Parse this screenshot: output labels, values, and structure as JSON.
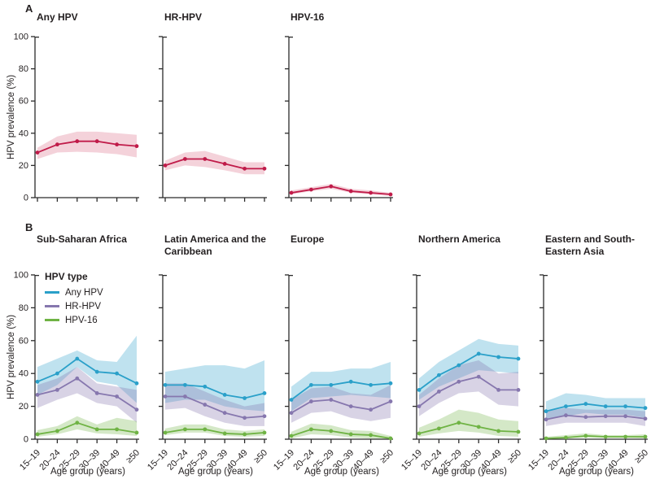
{
  "figure": {
    "panels": [
      {
        "label": "A"
      },
      {
        "label": "B"
      }
    ],
    "ylabel": "HPV prevalence (%)",
    "xlabel": "Age group (years)",
    "legend": {
      "title": "HPV type",
      "position": "top-left of first panel-B subplot",
      "entries": [
        {
          "label": "Any HPV",
          "color": "#2aa0c9"
        },
        {
          "label": "HR-HPV",
          "color": "#8677ae"
        },
        {
          "label": "HPV-16",
          "color": "#6fb344"
        }
      ]
    }
  },
  "colors": {
    "axis": "#2b2b2b",
    "text": "#231f20",
    "red_line": "#c01b49",
    "red_band": "rgba(198,28,70,0.20)",
    "blue_line": "#2aa0c9",
    "blue_band": "rgba(42,160,201,0.30)",
    "purple_line": "#8677ae",
    "purple_band": "rgba(134,119,174,0.32)",
    "green_line": "#6fb344",
    "green_band": "rgba(111,179,68,0.30)"
  },
  "chart_data": [
    {
      "type": "line",
      "panel": "A",
      "title": "Any HPV",
      "categories": [
        "15–19",
        "20–24",
        "25–29",
        "30–39",
        "40–49",
        "≥50"
      ],
      "ylim": [
        0,
        100
      ],
      "yticks": [
        0,
        20,
        40,
        60,
        80,
        100
      ],
      "show_ytick_labels": true,
      "show_xtick_labels": false,
      "grid": false,
      "series": [
        {
          "name": "Any HPV",
          "color": "#c01b49",
          "band_color": "rgba(198,28,70,0.20)",
          "values": [
            28,
            33,
            35,
            35,
            33,
            32
          ],
          "lower": [
            24,
            28,
            28.5,
            28,
            27,
            25
          ],
          "upper": [
            31,
            38,
            41,
            41,
            40,
            39
          ]
        }
      ]
    },
    {
      "type": "line",
      "panel": "A",
      "title": "HR-HPV",
      "categories": [
        "15–19",
        "20–24",
        "25–29",
        "30–39",
        "40–49",
        "≥50"
      ],
      "ylim": [
        0,
        100
      ],
      "yticks": [
        0,
        20,
        40,
        60,
        80,
        100
      ],
      "show_ytick_labels": false,
      "show_xtick_labels": false,
      "grid": false,
      "series": [
        {
          "name": "HR-HPV",
          "color": "#c01b49",
          "band_color": "rgba(198,28,70,0.20)",
          "values": [
            20,
            24,
            24,
            21,
            18,
            18
          ],
          "lower": [
            17,
            20,
            19,
            17,
            14.5,
            14.5
          ],
          "upper": [
            23,
            28,
            29,
            25.5,
            22,
            22
          ]
        }
      ]
    },
    {
      "type": "line",
      "panel": "A",
      "title": "HPV-16",
      "categories": [
        "15–19",
        "20–24",
        "25–29",
        "30–39",
        "40–49",
        "≥50"
      ],
      "ylim": [
        0,
        100
      ],
      "yticks": [
        0,
        20,
        40,
        60,
        80,
        100
      ],
      "show_ytick_labels": false,
      "show_xtick_labels": false,
      "grid": false,
      "series": [
        {
          "name": "HPV-16",
          "color": "#c01b49",
          "band_color": "rgba(198,28,70,0.20)",
          "values": [
            3,
            5,
            7,
            4,
            3,
            2
          ],
          "lower": [
            2,
            4,
            5.5,
            3,
            2,
            1
          ],
          "upper": [
            4.5,
            6.5,
            8.5,
            5.5,
            4.5,
            3
          ]
        }
      ]
    },
    {
      "type": "line",
      "panel": "B",
      "title": "Sub-Saharan Africa",
      "categories": [
        "15–19",
        "20–24",
        "25–29",
        "30–39",
        "40–49",
        "≥50"
      ],
      "ylim": [
        0,
        100
      ],
      "yticks": [
        0,
        20,
        40,
        60,
        80,
        100
      ],
      "show_ytick_labels": true,
      "show_xtick_labels": true,
      "grid": false,
      "series": [
        {
          "name": "Any HPV",
          "color": "#2aa0c9",
          "band_color": "rgba(42,160,201,0.30)",
          "values": [
            35,
            40,
            49,
            41,
            40,
            34
          ],
          "lower": [
            27,
            33,
            44,
            35,
            33,
            22
          ],
          "upper": [
            44,
            49,
            54,
            48,
            47,
            63
          ]
        },
        {
          "name": "HR-HPV",
          "color": "#8677ae",
          "band_color": "rgba(134,119,174,0.32)",
          "values": [
            27,
            30,
            37,
            28,
            26,
            18
          ],
          "lower": [
            19,
            24,
            28,
            22,
            20,
            10
          ],
          "upper": [
            33,
            37,
            44,
            34,
            32,
            30
          ]
        },
        {
          "name": "HPV-16",
          "color": "#6fb344",
          "band_color": "rgba(111,179,68,0.30)",
          "values": [
            3,
            5,
            10,
            6,
            6,
            4
          ],
          "lower": [
            1.5,
            3,
            6,
            3.5,
            3,
            2
          ],
          "upper": [
            5.5,
            8,
            14,
            9,
            13,
            11
          ]
        }
      ]
    },
    {
      "type": "line",
      "panel": "B",
      "title": "Latin America and the Caribbean",
      "categories": [
        "15–19",
        "20–24",
        "25–29",
        "30–39",
        "40–49",
        "≥50"
      ],
      "ylim": [
        0,
        100
      ],
      "yticks": [
        0,
        20,
        40,
        60,
        80,
        100
      ],
      "show_ytick_labels": false,
      "show_xtick_labels": true,
      "grid": false,
      "series": [
        {
          "name": "Any HPV",
          "color": "#2aa0c9",
          "band_color": "rgba(42,160,201,0.30)",
          "values": [
            33,
            33,
            32,
            27,
            25,
            28
          ],
          "lower": [
            22,
            24,
            24,
            20,
            18,
            17
          ],
          "upper": [
            41,
            43,
            45,
            45,
            43,
            48
          ]
        },
        {
          "name": "HR-HPV",
          "color": "#8677ae",
          "band_color": "rgba(134,119,174,0.32)",
          "values": [
            26,
            26,
            21,
            16,
            13,
            14
          ],
          "lower": [
            18,
            19,
            14,
            10,
            8,
            8
          ],
          "upper": [
            34,
            34,
            29,
            24,
            20,
            22
          ]
        },
        {
          "name": "HPV-16",
          "color": "#6fb344",
          "band_color": "rgba(111,179,68,0.30)",
          "values": [
            4,
            6,
            6,
            3.5,
            3,
            4
          ],
          "lower": [
            2.5,
            4,
            4,
            2,
            1.5,
            2
          ],
          "upper": [
            6.5,
            9,
            9,
            6,
            5,
            6
          ]
        }
      ]
    },
    {
      "type": "line",
      "panel": "B",
      "title": "Europe",
      "categories": [
        "15–19",
        "20–24",
        "25–29",
        "30–39",
        "40–49",
        "≥50"
      ],
      "ylim": [
        0,
        100
      ],
      "yticks": [
        0,
        20,
        40,
        60,
        80,
        100
      ],
      "show_ytick_labels": false,
      "show_xtick_labels": true,
      "grid": false,
      "series": [
        {
          "name": "Any HPV",
          "color": "#2aa0c9",
          "band_color": "rgba(42,160,201,0.30)",
          "values": [
            24,
            33,
            33,
            35,
            33,
            34
          ],
          "lower": [
            17,
            25,
            26,
            27,
            26,
            25
          ],
          "upper": [
            32,
            41,
            41,
            43,
            43,
            47
          ]
        },
        {
          "name": "HR-HPV",
          "color": "#8677ae",
          "band_color": "rgba(134,119,174,0.32)",
          "values": [
            16,
            23,
            24,
            20,
            18,
            23
          ],
          "lower": [
            10,
            16,
            17,
            13,
            11,
            13
          ],
          "upper": [
            24,
            31,
            32,
            28,
            27,
            33
          ]
        },
        {
          "name": "HPV-16",
          "color": "#6fb344",
          "band_color": "rgba(111,179,68,0.30)",
          "values": [
            2,
            6,
            5,
            3,
            2.5,
            0.5
          ],
          "lower": [
            0.5,
            3,
            2.5,
            1,
            0.5,
            0
          ],
          "upper": [
            4.5,
            9.5,
            8.5,
            5.5,
            5,
            2
          ]
        }
      ]
    },
    {
      "type": "line",
      "panel": "B",
      "title": "Northern America",
      "categories": [
        "15–19",
        "20–24",
        "25–29",
        "30–39",
        "40–49",
        "≥50"
      ],
      "ylim": [
        0,
        100
      ],
      "yticks": [
        0,
        20,
        40,
        60,
        80,
        100
      ],
      "show_ytick_labels": false,
      "show_xtick_labels": true,
      "grid": false,
      "series": [
        {
          "name": "Any HPV",
          "color": "#2aa0c9",
          "band_color": "rgba(42,160,201,0.30)",
          "values": [
            30,
            39,
            45,
            52,
            50,
            49
          ],
          "lower": [
            24,
            32,
            37,
            42,
            41,
            40
          ],
          "upper": [
            37,
            47,
            54,
            61,
            58,
            57
          ]
        },
        {
          "name": "HR-HPV",
          "color": "#8677ae",
          "band_color": "rgba(134,119,174,0.32)",
          "values": [
            20,
            29,
            35,
            38,
            30,
            30
          ],
          "lower": [
            14,
            22,
            28,
            29,
            21,
            20
          ],
          "upper": [
            27,
            37,
            45,
            48,
            40,
            41
          ]
        },
        {
          "name": "HPV-16",
          "color": "#6fb344",
          "band_color": "rgba(111,179,68,0.30)",
          "values": [
            3.5,
            6.5,
            10,
            7.5,
            5,
            4.5
          ],
          "lower": [
            1.5,
            3.5,
            5,
            4,
            2,
            1.5
          ],
          "upper": [
            7,
            12,
            18,
            16,
            12,
            11
          ]
        }
      ]
    },
    {
      "type": "line",
      "panel": "B",
      "title": "Eastern and South-Eastern Asia",
      "categories": [
        "15–19",
        "20–24",
        "25–29",
        "30–39",
        "40–49",
        "≥50"
      ],
      "ylim": [
        0,
        100
      ],
      "yticks": [
        0,
        20,
        40,
        60,
        80,
        100
      ],
      "show_ytick_labels": false,
      "show_xtick_labels": true,
      "grid": false,
      "series": [
        {
          "name": "Any HPV",
          "color": "#2aa0c9",
          "band_color": "rgba(42,160,201,0.30)",
          "values": [
            17,
            20,
            21.5,
            20,
            20,
            19
          ],
          "lower": [
            12,
            14,
            16,
            15,
            15,
            13
          ],
          "upper": [
            23,
            28,
            27,
            25,
            25,
            25
          ]
        },
        {
          "name": "HR-HPV",
          "color": "#8677ae",
          "band_color": "rgba(134,119,174,0.32)",
          "values": [
            12,
            14.5,
            13.5,
            14,
            14,
            12.5
          ],
          "lower": [
            8,
            10,
            10,
            10,
            10,
            8
          ],
          "upper": [
            17,
            19,
            18,
            18,
            18,
            17
          ]
        },
        {
          "name": "HPV-16",
          "color": "#6fb344",
          "band_color": "rgba(111,179,68,0.30)",
          "values": [
            0.5,
            1,
            2,
            1.5,
            1.5,
            1.5
          ],
          "lower": [
            0,
            0.5,
            1,
            0.8,
            0.8,
            0.5
          ],
          "upper": [
            1.5,
            2.5,
            3.5,
            2.5,
            2.5,
            3
          ]
        }
      ]
    }
  ]
}
